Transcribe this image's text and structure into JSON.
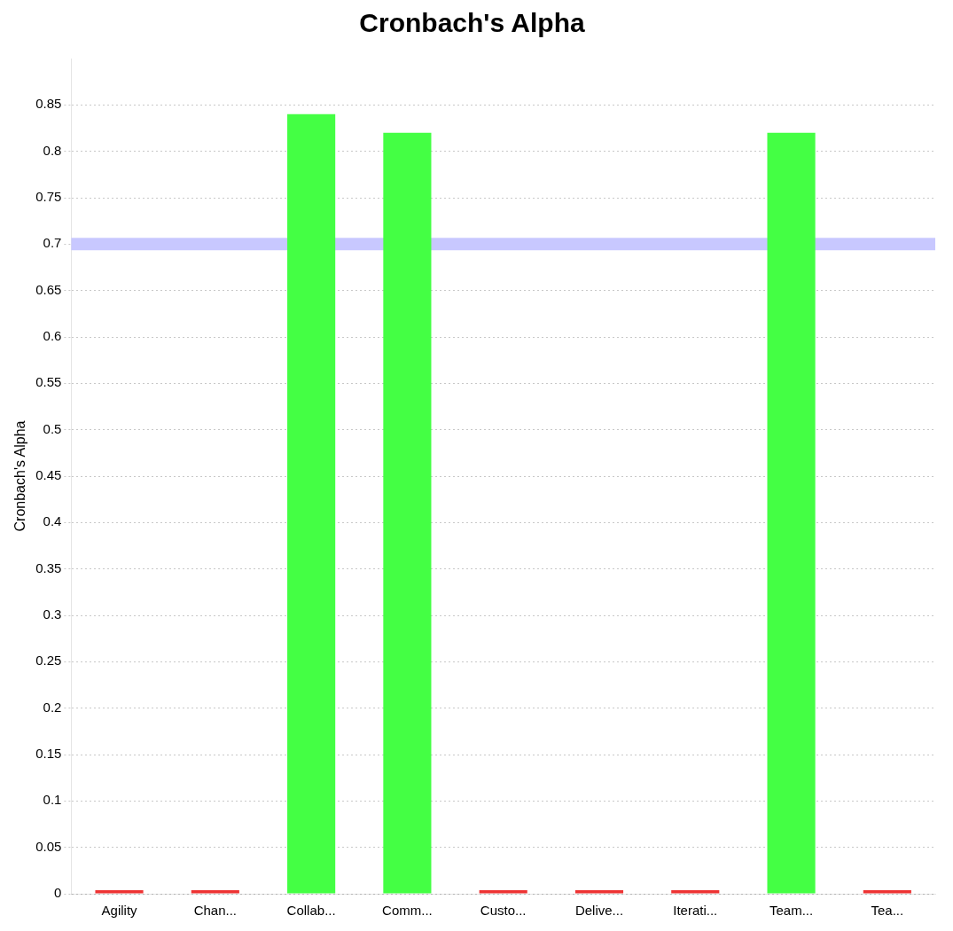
{
  "chart_data": {
    "type": "bar",
    "title": "Cronbach's Alpha",
    "ylabel": "Cronbach's Alpha",
    "categories": [
      "Agility",
      "Chan...",
      "Collab...",
      "Comm...",
      "Custo...",
      "Delive...",
      "Iterati...",
      "Team...",
      "Tea..."
    ],
    "values": [
      0,
      0,
      0.84,
      0.82,
      0,
      0,
      0,
      0.82,
      0
    ],
    "colors": [
      "#ee3333",
      "#ee3333",
      "#44ff44",
      "#44ff44",
      "#ee3333",
      "#ee3333",
      "#ee3333",
      "#44ff44",
      "#ee3333"
    ],
    "ylim": [
      0,
      0.9
    ],
    "yticks": [
      0,
      0.05,
      0.1,
      0.15,
      0.2,
      0.25,
      0.3,
      0.35,
      0.4,
      0.45,
      0.5,
      0.55,
      0.6,
      0.65,
      0.7,
      0.75,
      0.8,
      0.85
    ],
    "ref_lines": [
      {
        "axis": "y",
        "value": 0.7,
        "color": "#c8c8ff"
      }
    ],
    "grid": "y",
    "legend": false
  }
}
